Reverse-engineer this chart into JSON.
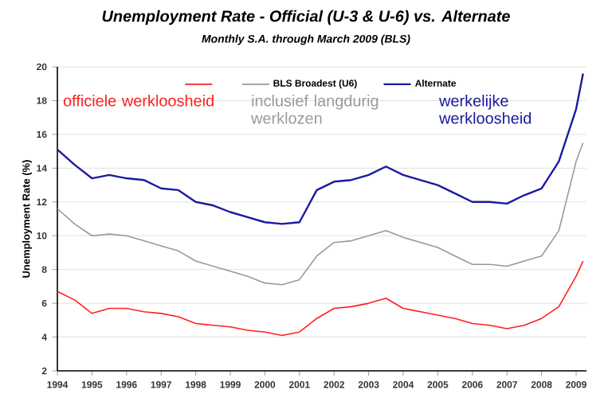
{
  "chart_data": {
    "type": "line",
    "title": "Unemployment Rate - Official (U-3 & U-6) vs. Alternate",
    "subtitle": "Monthly S.A. through March 2009 (BLS)",
    "ylabel": "Unemployment Rate (%)",
    "x": [
      1994.0,
      1994.5,
      1995.0,
      1995.5,
      1996.0,
      1996.5,
      1997.0,
      1997.5,
      1998.0,
      1998.5,
      1999.0,
      1999.5,
      2000.0,
      2000.5,
      2001.0,
      2001.5,
      2002.0,
      2002.5,
      2003.0,
      2003.5,
      2004.0,
      2004.5,
      2005.0,
      2005.5,
      2006.0,
      2006.5,
      2007.0,
      2007.5,
      2008.0,
      2008.5,
      2009.0,
      2009.2
    ],
    "series": [
      {
        "color": "#ff2020",
        "values": [
          6.7,
          6.2,
          5.4,
          5.7,
          5.7,
          5.5,
          5.4,
          5.2,
          4.8,
          4.7,
          4.6,
          4.4,
          4.3,
          4.1,
          4.3,
          5.1,
          5.7,
          5.8,
          6.0,
          6.3,
          5.7,
          5.5,
          5.3,
          5.1,
          4.8,
          4.7,
          4.5,
          4.7,
          5.1,
          5.8,
          7.6,
          8.5
        ]
      },
      {
        "name": "BLS Broadest (U6)",
        "color": "#999999",
        "values": [
          11.6,
          10.7,
          10.0,
          10.1,
          10.0,
          9.7,
          9.4,
          9.1,
          8.5,
          8.2,
          7.9,
          7.6,
          7.2,
          7.1,
          7.4,
          8.8,
          9.6,
          9.7,
          10.0,
          10.3,
          9.9,
          9.6,
          9.3,
          8.8,
          8.3,
          8.3,
          8.2,
          8.5,
          8.8,
          10.3,
          14.4,
          15.5
        ]
      },
      {
        "name": "Alternate",
        "color": "#1a1aa0",
        "values": [
          15.1,
          14.2,
          13.4,
          13.6,
          13.4,
          13.3,
          12.8,
          12.7,
          12.0,
          11.8,
          11.4,
          11.1,
          10.8,
          10.7,
          10.8,
          12.7,
          13.2,
          13.3,
          13.6,
          14.1,
          13.6,
          13.3,
          13.0,
          12.5,
          12.0,
          12.0,
          11.9,
          12.4,
          12.8,
          14.4,
          17.5,
          19.6
        ]
      }
    ],
    "annotations": [
      "officiele werkloosheid",
      "inclusief langdurig werklozen",
      "werkelijke werkloosheid"
    ],
    "xlim": [
      1994,
      2009.3
    ],
    "xticks": [
      1994,
      1995,
      1996,
      1997,
      1998,
      1999,
      2000,
      2001,
      2002,
      2003,
      2004,
      2005,
      2006,
      2007,
      2008,
      2009
    ],
    "ylim": [
      2,
      20
    ],
    "yticks": [
      2,
      4,
      6,
      8,
      10,
      12,
      14,
      16,
      18,
      20
    ],
    "grid": "y",
    "legend": "top",
    "marker": "none",
    "line_style": "solid"
  }
}
